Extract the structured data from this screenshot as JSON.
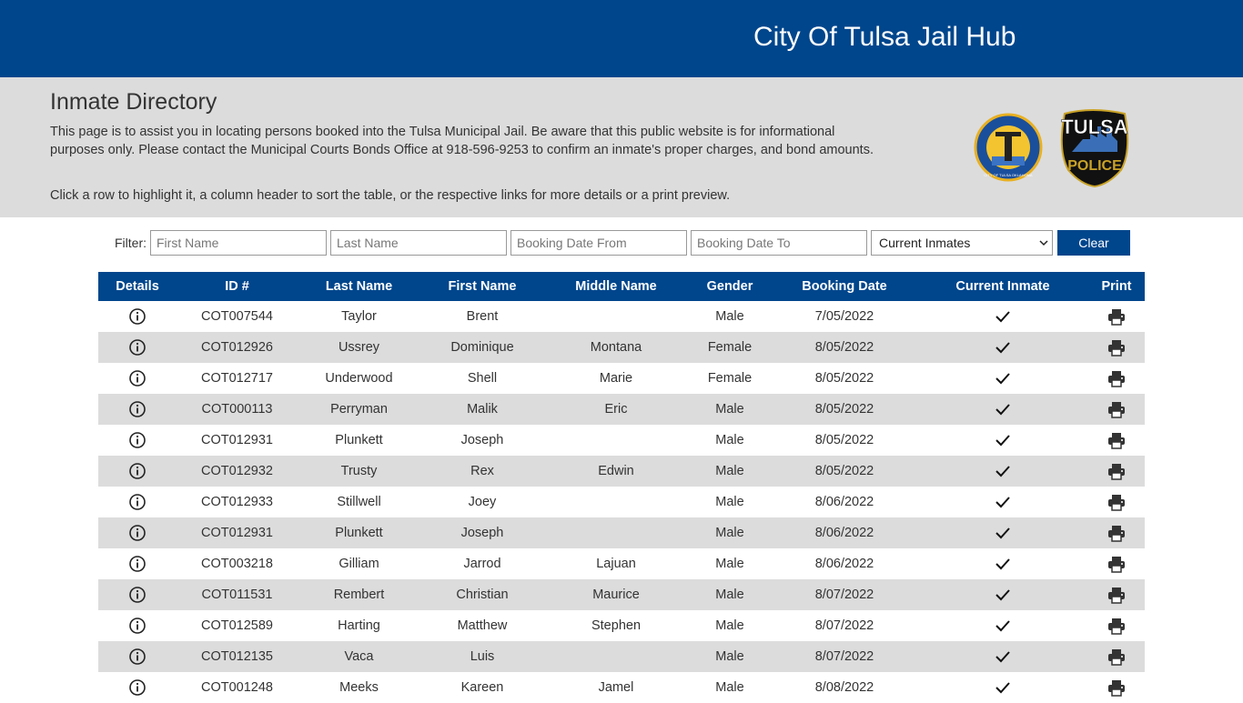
{
  "header": {
    "title": "City Of Tulsa Jail Hub"
  },
  "intro": {
    "heading": "Inmate Directory",
    "paragraphs": [
      "This page is to assist you in locating persons booked into the Tulsa Municipal Jail. Be aware that this public website is for informational purposes only. Please contact the Municipal Courts Bonds Office at 918-596-9253 to confirm an inmate's proper charges, and bond amounts.",
      "Click a row to highlight it, a column header to sort the table, or the respective links for more details or a print preview."
    ]
  },
  "logos": {
    "seal": "CITY OF TULSA OKLAHOMA",
    "badge": [
      "TULSA",
      "POLICE"
    ]
  },
  "filter": {
    "label": "Filter:",
    "placeholders": [
      "First Name",
      "Last Name",
      "Booking Date From",
      "Booking Date To"
    ],
    "select": "Current Inmates",
    "button": "Clear"
  },
  "table": {
    "columns": [
      "Details",
      "ID #",
      "Last Name",
      "First Name",
      "Middle Name",
      "Gender",
      "Booking Date",
      "Current Inmate",
      "Print"
    ],
    "rows": [
      [
        "COT007544",
        "Taylor",
        "Brent",
        null,
        "Male",
        "7/05/2022"
      ],
      [
        "COT012926",
        "Ussrey",
        "Dominique",
        "Montana",
        "Female",
        "8/05/2022"
      ],
      [
        "COT012717",
        "Underwood",
        "Shell",
        "Marie",
        "Female",
        "8/05/2022"
      ],
      [
        "COT000113",
        "Perryman",
        "Malik",
        "Eric",
        "Male",
        "8/05/2022"
      ],
      [
        "COT012931",
        "Plunkett",
        "Joseph",
        null,
        "Male",
        "8/05/2022"
      ],
      [
        "COT012932",
        "Trusty",
        "Rex",
        "Edwin",
        "Male",
        "8/05/2022"
      ],
      [
        "COT012933",
        "Stillwell",
        "Joey",
        null,
        "Male",
        "8/06/2022"
      ],
      [
        "COT012931",
        "Plunkett",
        "Joseph",
        null,
        "Male",
        "8/06/2022"
      ],
      [
        "COT003218",
        "Gilliam",
        "Jarrod",
        "Lajuan",
        "Male",
        "8/06/2022"
      ],
      [
        "COT011531",
        "Rembert",
        "Christian",
        "Maurice",
        "Male",
        "8/07/2022"
      ],
      [
        "COT012589",
        "Harting",
        "Matthew",
        "Stephen",
        "Male",
        "8/07/2022"
      ],
      [
        "COT012135",
        "Vaca",
        "Luis",
        null,
        "Male",
        "8/07/2022"
      ],
      [
        "COT001248",
        "Meeks",
        "Kareen",
        "Jamel",
        "Male",
        "8/08/2022"
      ]
    ]
  }
}
